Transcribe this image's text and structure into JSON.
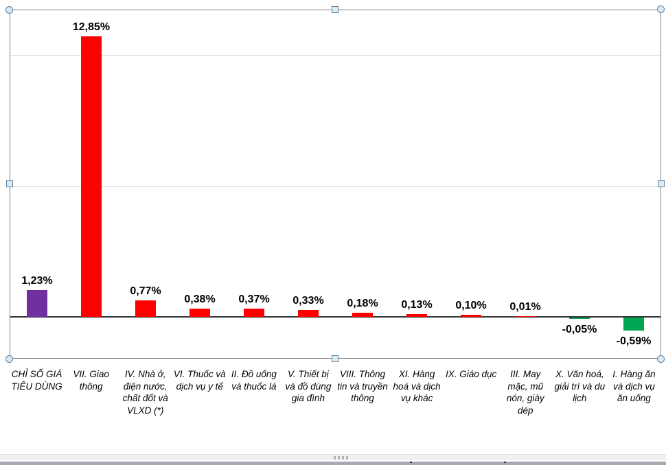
{
  "chart_data": {
    "type": "bar",
    "title": "",
    "subtitle": "",
    "legend": "none",
    "grid": "horizontal",
    "value_axis_labels": "hidden",
    "ylim": [
      -1.93,
      14.15
    ],
    "gridline_values": [
      6,
      12
    ],
    "categories": [
      "CHỈ SỐ GIÁ TIÊU DÙNG",
      "VII. Giao thông",
      "IV. Nhà ở, điện nước, chất đốt và VLXD (*)",
      "VI. Thuốc và dịch vụ y tế",
      "II. Đồ uống và thuốc lá",
      "V. Thiết bị và đồ dùng gia đình",
      "VIII. Thông tin và truyền thông",
      "XI. Hàng hoá và dịch vụ khác",
      "IX. Giáo dục",
      "III. May mặc, mũ nón, giày dép",
      "X. Văn hoá, giải trí và du lịch",
      "I. Hàng ăn và dịch vụ ăn uống"
    ],
    "values": [
      1.23,
      12.85,
      0.77,
      0.38,
      0.37,
      0.33,
      0.18,
      0.13,
      0.1,
      0.01,
      -0.05,
      -0.59
    ],
    "data_labels": [
      "1,23%",
      "12,85%",
      "0,77%",
      "0,38%",
      "0,37%",
      "0,33%",
      "0,18%",
      "0,13%",
      "0,10%",
      "0,01%",
      "-0,05%",
      "-0,59%"
    ],
    "bar_colors": [
      "#7030A0",
      "#FF0000",
      "#FF0000",
      "#FF0000",
      "#FF0000",
      "#FF0000",
      "#FF0000",
      "#FF0000",
      "#FF0000",
      "#FF0000",
      "#00A651",
      "#00A651"
    ]
  },
  "colors": {
    "cpi_total_bar": "#7030A0",
    "increase_bar": "#FF0000",
    "decrease_bar": "#00A651",
    "gridline": "#D6D6D6",
    "zero_axis": "#333333",
    "plot_border": "#7F7F7F",
    "handle_fill": "#D9EBF5",
    "handle_border": "#5F7E9C"
  },
  "selection": {
    "object_selected": "plot-area",
    "handle_count": 8
  }
}
